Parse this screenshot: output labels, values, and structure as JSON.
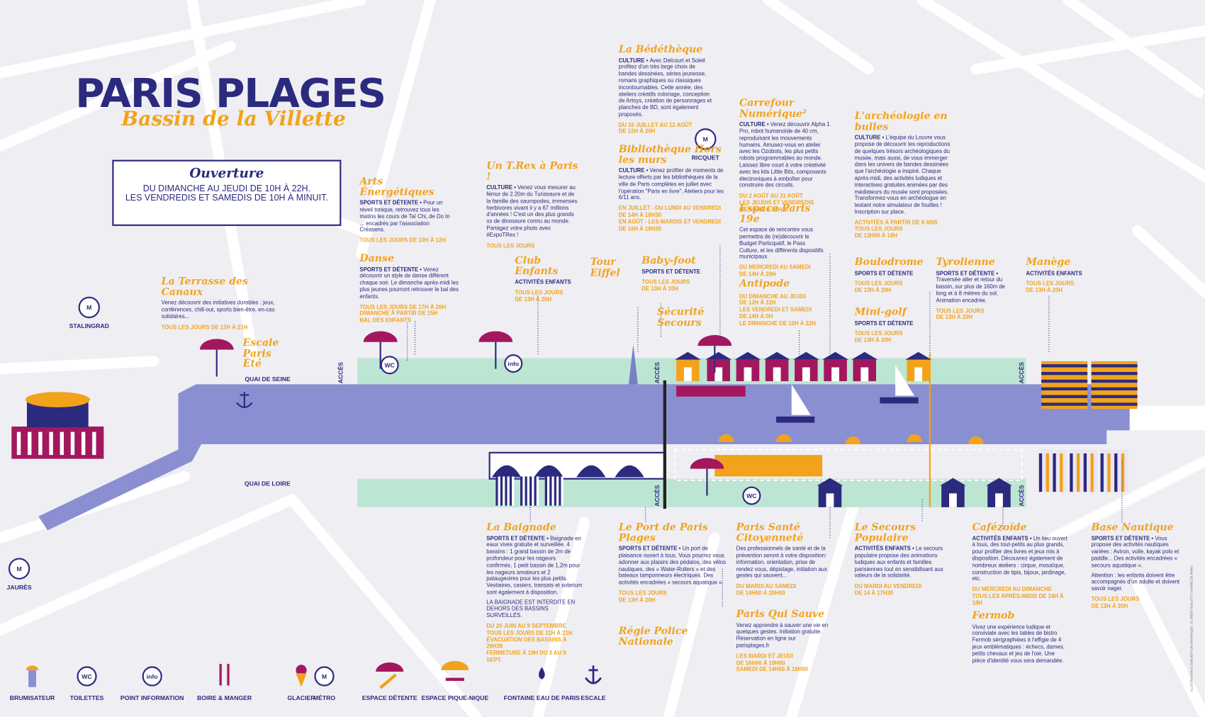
{
  "header": {
    "title": "PARIS PLAGES",
    "subtitle": "Bassin de la Villette"
  },
  "hours": {
    "title": "Ouverture",
    "lines": [
      "DU DIMANCHE AU JEUDI DE 10H À 22H.",
      "LES VENDREDIS ET SAMEDIS DE 10H À MINUIT."
    ]
  },
  "icons": {
    "metro": "M",
    "wc": "WC",
    "info": "info"
  },
  "metros": [
    "STALINGRAD",
    "RICQUET",
    "JAURÈS"
  ],
  "quays": [
    "QUAI DE SEINE",
    "QUAI DE LOIRE"
  ],
  "access": "ACCÈS",
  "activities": [
    {
      "name": "La Bédéthèque",
      "category": "CULTURE",
      "text": "Avec Delcourt et Soleil profitez d'un très large choix de bandes dessinées, séries jeunesse, romans graphiques ou classiques incontournables. Cette année, des ateliers créatifs coloriage, conception de Artoys, création de personnages et planches de BD, sont également proposés.",
      "schedule": [
        "DU 16 JUILLET AU 12 AOÛT",
        "DE 12H À 20H"
      ]
    },
    {
      "name": "Carrefour Numérique²",
      "category": "CULTURE",
      "text": "Venez découvrir Alpha 1 Pro, robot humanoïde de 40 cm, reproduisant les mouvements humains. Amusez-vous en atelier avec les Ozobots, les plus petits robots programmables au monde. Laissez libre court à votre créativité avec les kits Little Bits, composants électroniques à emboîter pour construire des circuits.",
      "schedule": [
        "DU 2 AOÛT AU 31 AOÛT",
        "LES JEUDIS ET VENDREDIS",
        "DE 14H00 À 18H30"
      ]
    },
    {
      "name": "L'archéologie en bulles",
      "category": "CULTURE",
      "text": "L'équipe du Louvre vous propose de découvrir les reproductions de quelques trésors archéologiques du musée, mais aussi, de vous immerger dans les univers de bandes dessinées que l'archéologie a inspiré. Chaque après-midi, des activités ludiques et interactives gratuites animées par des médiateurs du musée sont proposées. Transformez-vous en archéologue en testant notre simulateur de fouilles ! Inscription sur place.",
      "schedule": [
        "ACTIVITÉS À PARTIR DE 6 ANS",
        "TOUS LES JOURS",
        "DE 13H00 À 18H"
      ]
    },
    {
      "name": "Bibliothèque Hors les murs",
      "category": "CULTURE",
      "text": "Venez profiter de moments de lecture offerts par les bibliothèques de la ville de Paris complètes en juillet avec l'opération \"Paris en livre\". Ateliers pour les 6/11 ans.",
      "schedule": [
        "EN JUILLET - DU LUNDI AU VENDREDI",
        "DE 14H À 18H30",
        "EN AOÛT - LES MARDIS ET VENDREDI",
        "DE 16H À 18H30"
      ]
    },
    {
      "name": "Un T.Rex à Paris !",
      "category": "CULTURE",
      "text": "Venez vous mesurer au fémur de 2.20m du Turiasaure et de la famille des sauropodes, immenses herbivores vivant il y a 67 millions d'années ! C'est un des plus grands os de dinosaure connu au monde. Partagez votre photo avec #ExpoTRex !",
      "schedule": [
        "TOUS LES JOURS"
      ]
    },
    {
      "name": "Arts Énergétiques",
      "category": "SPORTS ET DÉTENTE",
      "text": "Pour un réveil tonique, retrouvez tous les matins les cours de Taï Chi, de Do In ... encadrés par l'association Créasens.",
      "schedule": [
        "TOUS LES JOURS DE 10H À 12H"
      ]
    },
    {
      "name": "Espace Paris 19e",
      "text": "Cet espace de rencontre vous permettra de (re)découvrir le Budget Participatif, le Pass Culture, et les différents dispositifs municipaux.",
      "schedule": [
        "DU MERCREDI AU SAMEDI",
        "DE 14H À 20H"
      ]
    },
    {
      "name": "Danse",
      "category": "SPORTS ET DÉTENTE",
      "text": "Venez découvrir un style de danse différent chaque soir. Le dimanche après-midi les plus jeunes pourront retrouver le bal des enfants.",
      "schedule": [
        "TOUS LES JOURS DE 17H À 20H",
        "DIMANCHE À PARTIR DE 15H",
        "BAL DES ENFANTS"
      ]
    },
    {
      "name": "Club Enfants",
      "category": "ACTIVITÉS ENFANTS",
      "schedule": [
        "TOUS LES JOURS",
        "DE 13H À 20H"
      ]
    },
    {
      "name": "Tour Eiffel"
    },
    {
      "name": "Baby-foot",
      "category": "SPORTS ET DÉTENTE",
      "schedule": [
        "TOUS LES JOURS",
        "DE 13H À 20H"
      ]
    },
    {
      "name": "Boulodrome",
      "category": "SPORTS ET DÉTENTE",
      "schedule": [
        "TOUS LES JOURS",
        "DE 13H À 20H"
      ]
    },
    {
      "name": "Tyrolienne",
      "category": "SPORTS ET DÉTENTE",
      "text": "Traversée aller et retour du bassin, sur plus de 160m de long et à 8 mètres du sol. Animation encadrée.",
      "schedule": [
        "TOUS LES JOURS",
        "DE 13H À 20H"
      ]
    },
    {
      "name": "Manège",
      "category": "ACTIVITÉS ENFANTS",
      "schedule": [
        "TOUS LES JOURS",
        "DE 13H À 20H"
      ]
    },
    {
      "name": "La Terrasse des Canaux",
      "text": "Venez découvrir des initiatives durables : jeux, conférences, chill-out, sports bien-être, en-cas solidaires...",
      "schedule": [
        "TOUS LES JOURS DE 12H À 21H"
      ]
    },
    {
      "name": "Antipode",
      "schedule": [
        "DU DIMANCHE AU JEUDI",
        "DE 12H À 22H",
        "LES VENDREDI ET SAMEDI",
        "DE 14H À 0H",
        "LE DIMANCHE DE 10H À 22H"
      ]
    },
    {
      "name": "Mini-golf",
      "category": "SPORTS ET DÉTENTE",
      "schedule": [
        "TOUS LES JOURS",
        "DE 13H À 20H"
      ]
    },
    {
      "name": "Sécurité Secours"
    },
    {
      "name": "Escale Paris Été"
    },
    {
      "name": "La Baignade",
      "category": "SPORTS ET DÉTENTE",
      "text": "Baignade en eaux vives gratuite et surveillée. 4 bassins : 1 grand bassin de 2m de profondeur pour les nageurs confirmés, 1 petit bassin de 1,2m pour les nageurs amateurs et 2 pataugeoires pour les plus petits. Vestiaires, casiers, transats et solarium sont également à disposition.",
      "note": "LA BAIGNADE EST INTERDITE EN DEHORS DES BASSINS SURVEILLÉS.",
      "schedule": [
        "DU 20 JUIN AU 9 SEPTEMBRE",
        "TOUS LES JOURS DE 11H À 21H",
        "ÉVACUATION DES BASSINS À 20H30",
        "FERMETURE À 19H DU 3 AU 9 SEPT."
      ]
    },
    {
      "name": "Le Port de Paris Plages",
      "category": "SPORTS ET DÉTENTE",
      "text": "Un port de plaisance ouvert à tous. Vous pourrez vous adonner aux plaisirs des pédalos, des vélos nautiques, des « Water-Rollers » et des bateaux tamponneurs électriques. Des activités encadrées « secours aquatique ».",
      "schedule": [
        "TOUS LES JOURS",
        "DE 13H À 20H"
      ]
    },
    {
      "name": "Paris Santé Citoyenneté",
      "text": "Des professionnels de santé et de la prévention seront à votre disposition: information, orientation, prise de rendez vous, dépistage, initiation aux gestes qui sauvent...",
      "schedule": [
        "DU MARDI AU SAMEDI",
        "DE 14H00 À 20H00"
      ]
    },
    {
      "name": "Le Secours Populaire",
      "category": "ACTIVITÉS ENFANTS",
      "text": "Le secours populaire propose des animations ludiques aux enfants et familles parisiennes tout en sensibilisant aux valeurs de la solidarité.",
      "schedule": [
        "DU MARDI AU VENDREDI",
        "DE 14 À 17H30"
      ]
    },
    {
      "name": "Cafézoïde",
      "category": "ACTIVITÉS ENFANTS",
      "text": "Un lieu ouvert à tous, des tout-petits au plus grands, pour profiter des livres et jeux mis à disposition. Découvrez également de nombreux ateliers : cirque, mosaïque, construction de tipis, bijoux, jardinage, etc.",
      "schedule": [
        "DU MERCREDI AU DIMANCHE",
        "TOUS LES APRÈS-MIDIS DE 14H À 18H"
      ]
    },
    {
      "name": "Base Nautique",
      "category": "SPORTS ET DÉTENTE",
      "text": "Vous propose des activités nautiques variées : Aviron, voile, kayak polo et paddle... Des activités encadrées « secours aquatique ».",
      "note": "Attention : les enfants doivent être accompagnés d'un adulte et doivent savoir nager.",
      "schedule": [
        "TOUS LES JOURS",
        "DE 13H À 20H"
      ]
    },
    {
      "name": "Paris Qui Sauve",
      "text": "Venez apprendre à sauver une vie en quelques gestes. Initiation gratuite. Réservation en ligne sur parisplages.fr",
      "schedule": [
        "LES MARDI ET JEUDI",
        "DE 16H00 À 19H00",
        "SAMEDI DE 14H00 À 18H00"
      ]
    },
    {
      "name": "Fermob",
      "text": "Vivez une expérience ludique et conviviale avec les tables de bistro Fermob sérigraphiées à l'effigie de 4 jeux emblématiques : échecs, dames, petits chevaux et jeu de l'oie. Une pièce d'identité vous sera demandée."
    },
    {
      "name": "Régie Police Nationale"
    }
  ],
  "legend": [
    "BRUMISATEUR",
    "TOILETTES",
    "POINT INFORMATION",
    "BOIRE & MANGER",
    "GLACIER",
    "MÉTRO",
    "ESPACE DÉTENTE",
    "ESPACE PIQUE-NIQUE",
    "FONTAINE EAU DE PARIS",
    "ESCALE"
  ],
  "credits": "ILLUSTRATION & CONCEPTION GRAPHIQUE : FLORENT BUGATTO / MAIRIE DE PARIS"
}
